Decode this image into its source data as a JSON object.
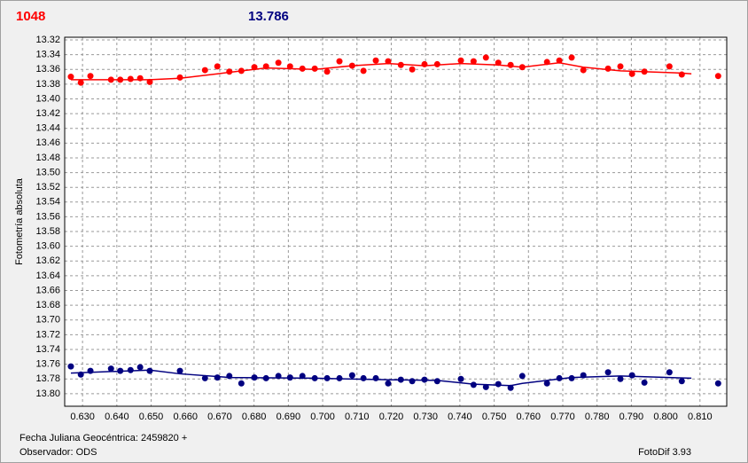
{
  "chart_data": {
    "type": "scatter",
    "header_left": "1048",
    "header_right": "13.786",
    "ylabel": "Fotometría absoluta",
    "xlabel": "Fecha Juliana Geocéntrica: 2459820 +",
    "observer": "Observador: ODS",
    "software": "FotoDif 3.93",
    "grid": true,
    "xlim": [
      0.6248,
      0.8178
    ],
    "ylim": [
      13.817,
      13.3164
    ],
    "xticks": [
      {
        "value": 0.63,
        "label": "0.630"
      },
      {
        "value": 0.64,
        "label": "0.640"
      },
      {
        "value": 0.65,
        "label": "0.650"
      },
      {
        "value": 0.66,
        "label": "0.660"
      },
      {
        "value": 0.67,
        "label": "0.670"
      },
      {
        "value": 0.68,
        "label": "0.680"
      },
      {
        "value": 0.69,
        "label": "0.690"
      },
      {
        "value": 0.7,
        "label": "0.700"
      },
      {
        "value": 0.71,
        "label": "0.710"
      },
      {
        "value": 0.72,
        "label": "0.720"
      },
      {
        "value": 0.73,
        "label": "0.730"
      },
      {
        "value": 0.74,
        "label": "0.740"
      },
      {
        "value": 0.75,
        "label": "0.750"
      },
      {
        "value": 0.76,
        "label": "0.760"
      },
      {
        "value": 0.77,
        "label": "0.770"
      },
      {
        "value": 0.78,
        "label": "0.780"
      },
      {
        "value": 0.79,
        "label": "0.790"
      },
      {
        "value": 0.8,
        "label": "0.800"
      },
      {
        "value": 0.81,
        "label": "0.810"
      }
    ],
    "yticks": [
      13.32,
      13.34,
      13.36,
      13.38,
      {
        "value": 13.4,
        "label": "13.40"
      },
      13.42,
      13.44,
      13.46,
      13.48,
      {
        "value": 13.5,
        "label": "13.50"
      },
      13.52,
      13.54,
      13.56,
      13.58,
      {
        "value": 13.6,
        "label": "13.60"
      },
      13.62,
      13.64,
      13.66,
      13.68,
      {
        "value": 13.7,
        "label": "13.70"
      },
      13.72,
      13.74,
      13.76,
      13.78,
      {
        "value": 13.8,
        "label": "13.80"
      }
    ],
    "x": [
      0.6266,
      0.6295,
      0.6323,
      0.6383,
      0.641,
      0.644,
      0.6468,
      0.6496,
      0.6584,
      0.6657,
      0.6693,
      0.6728,
      0.6763,
      0.6801,
      0.6835,
      0.6871,
      0.6905,
      0.6941,
      0.6977,
      0.7013,
      0.7049,
      0.7086,
      0.7119,
      0.7155,
      0.7191,
      0.7228,
      0.7261,
      0.7297,
      0.7334,
      0.7403,
      0.744,
      0.7476,
      0.7512,
      0.7548,
      0.7582,
      0.7654,
      0.769,
      0.7726,
      0.776,
      0.7832,
      0.7868,
      0.7902,
      0.7938,
      0.8011,
      0.8047,
      0.8153
    ],
    "series": [
      {
        "color": "#ff0000",
        "values": [
          13.37,
          13.378,
          13.369,
          13.374,
          13.374,
          13.373,
          13.372,
          13.377,
          13.371,
          13.361,
          13.356,
          13.363,
          13.362,
          13.357,
          13.356,
          13.351,
          13.356,
          13.359,
          13.359,
          13.363,
          13.349,
          13.355,
          13.362,
          13.348,
          13.349,
          13.354,
          13.36,
          13.353,
          13.353,
          13.348,
          13.349,
          13.344,
          13.351,
          13.354,
          13.357,
          13.35,
          13.348,
          13.344,
          13.361,
          13.359,
          13.356,
          13.366,
          13.363,
          13.356,
          13.367,
          13.369
        ]
      },
      {
        "color": "#000080",
        "values": [
          13.763,
          13.774,
          13.769,
          13.766,
          13.769,
          13.768,
          13.764,
          13.769,
          13.769,
          13.779,
          13.778,
          13.776,
          13.786,
          13.778,
          13.779,
          13.776,
          13.778,
          13.776,
          13.779,
          13.779,
          13.779,
          13.775,
          13.779,
          13.779,
          13.786,
          13.781,
          13.783,
          13.781,
          13.783,
          13.78,
          13.788,
          13.791,
          13.787,
          13.792,
          13.776,
          13.786,
          13.779,
          13.779,
          13.775,
          13.771,
          13.78,
          13.775,
          13.785,
          13.771,
          13.783,
          13.786
        ]
      }
    ],
    "fits": [
      {
        "color": "#ff0000",
        "x": [
          0.6266,
          0.6496,
          0.6584,
          0.6693,
          0.6835,
          0.6977,
          0.7086,
          0.7191,
          0.7297,
          0.7403,
          0.7512,
          0.7582,
          0.769,
          0.776,
          0.7868,
          0.8047,
          0.8075
        ],
        "values": [
          13.374,
          13.374,
          13.372,
          13.366,
          13.358,
          13.36,
          13.355,
          13.352,
          13.355,
          13.352,
          13.354,
          13.357,
          13.351,
          13.357,
          13.362,
          13.365,
          13.366
        ]
      },
      {
        "color": "#000080",
        "x": [
          0.6266,
          0.6496,
          0.6584,
          0.6728,
          0.6977,
          0.7191,
          0.7334,
          0.744,
          0.7548,
          0.7582,
          0.7726,
          0.7868,
          0.8011,
          0.8075
        ],
        "values": [
          13.772,
          13.768,
          13.773,
          13.778,
          13.779,
          13.781,
          13.782,
          13.787,
          13.789,
          13.786,
          13.778,
          13.776,
          13.778,
          13.779
        ]
      }
    ]
  }
}
